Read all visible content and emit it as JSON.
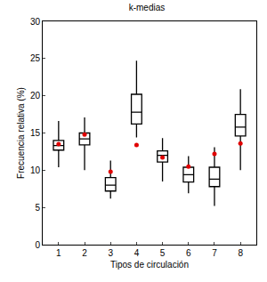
{
  "chart_data": {
    "type": "box",
    "title": "k-medias",
    "x_label": "Tipos de circulación",
    "y_label": "Frecuencia relativa (%)",
    "categories": [
      "1",
      "2",
      "3",
      "4",
      "5",
      "6",
      "7",
      "8"
    ],
    "boxes": {
      "color": "#000000",
      "min": [
        10.4,
        10.0,
        6.2,
        14.4,
        8.5,
        6.9,
        5.2,
        10.0
      ],
      "q1": [
        12.7,
        13.4,
        7.2,
        16.2,
        11.1,
        8.4,
        7.8,
        14.6
      ],
      "median": [
        13.3,
        14.2,
        8.0,
        17.8,
        12.0,
        9.4,
        8.8,
        15.8
      ],
      "q3": [
        14.0,
        15.0,
        9.0,
        20.2,
        12.6,
        10.4,
        10.4,
        17.5
      ],
      "max": [
        16.6,
        17.1,
        11.3,
        24.7,
        14.3,
        11.9,
        13.1,
        20.9
      ]
    },
    "points": {
      "type": "scatter",
      "color": "#e00000",
      "marker": "circle",
      "values": [
        13.5,
        14.8,
        9.8,
        13.4,
        11.7,
        10.5,
        12.2,
        13.6
      ]
    },
    "ylim": [
      0,
      30
    ],
    "yticks": [
      0,
      5,
      10,
      15,
      20,
      25,
      30
    ],
    "grid": false
  }
}
